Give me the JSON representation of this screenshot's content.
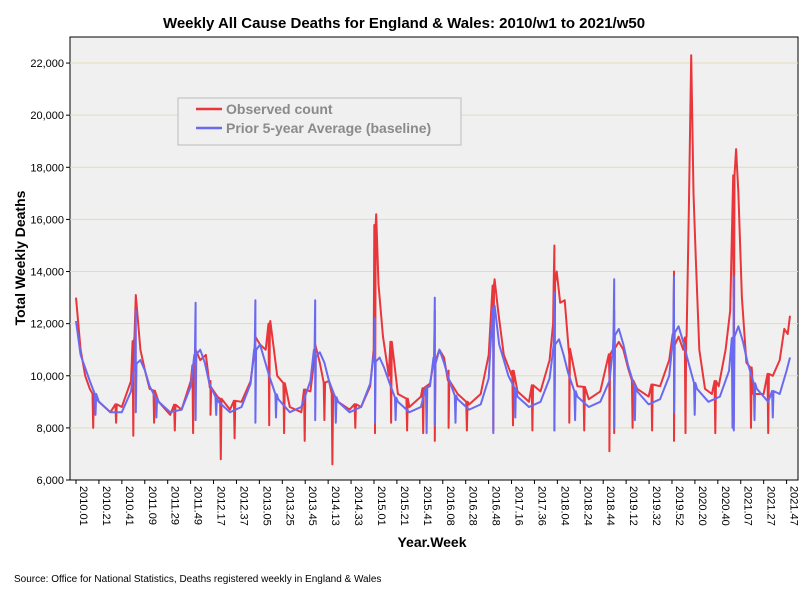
{
  "chart_data": {
    "type": "line",
    "title": "Weekly All Cause Deaths for England & Wales: 2010/w1 to 2021/w50",
    "xlabel": "Year.Week",
    "ylabel": "Total Weekly Deaths",
    "ylim": [
      6000,
      23000
    ],
    "yticks": [
      6000,
      8000,
      10000,
      12000,
      14000,
      16000,
      18000,
      20000,
      22000
    ],
    "ytick_labels": [
      "6,000",
      "8,000",
      "10,000",
      "12,000",
      "14,000",
      "16,000",
      "18,000",
      "20,000",
      "22,000"
    ],
    "xtick_labels": [
      "2010.01",
      "2010.21",
      "2010.41",
      "2011.09",
      "2011.29",
      "2011.49",
      "2012.17",
      "2012.37",
      "2013.05",
      "2013.25",
      "2013.45",
      "2014.13",
      "2014.33",
      "2015.01",
      "2015.21",
      "2015.41",
      "2016.08",
      "2016.28",
      "2016.48",
      "2017.16",
      "2017.36",
      "2018.04",
      "2018.24",
      "2018.44",
      "2019.12",
      "2019.32",
      "2019.52",
      "2020.20",
      "2020.40",
      "2021.07",
      "2021.27",
      "2021.47"
    ],
    "xtick_step_weeks": 20,
    "x_range": [
      "2010.01",
      "2021.50"
    ],
    "grid": "horizontal",
    "legend_position": "upper-left",
    "series": [
      {
        "name": "Observed count",
        "color": "#e8363b",
        "points": [
          [
            "2010.01",
            13000
          ],
          [
            "2010.05",
            11000
          ],
          [
            "2010.09",
            10000
          ],
          [
            "2010.13",
            9500
          ],
          [
            "2010.21",
            9000
          ],
          [
            "2010.31",
            8600
          ],
          [
            "2010.41",
            8800
          ],
          [
            "2010.49",
            9800
          ],
          [
            "2010.52",
            11500
          ],
          [
            "2011.01",
            13100
          ],
          [
            "2011.05",
            11000
          ],
          [
            "2011.09",
            10200
          ],
          [
            "2011.13",
            9500
          ],
          [
            "2011.21",
            9000
          ],
          [
            "2011.31",
            8500
          ],
          [
            "2011.41",
            8700
          ],
          [
            "2011.49",
            9800
          ],
          [
            "2011.52",
            10500
          ],
          [
            "2012.01",
            11000
          ],
          [
            "2012.05",
            10600
          ],
          [
            "2012.10",
            10800
          ],
          [
            "2012.14",
            9800
          ],
          [
            "2012.20",
            9200
          ],
          [
            "2012.31",
            8700
          ],
          [
            "2012.41",
            9000
          ],
          [
            "2012.49",
            9800
          ],
          [
            "2012.52",
            10800
          ],
          [
            "2013.01",
            11500
          ],
          [
            "2013.05",
            11200
          ],
          [
            "2013.10",
            11000
          ],
          [
            "2013.14",
            12100
          ],
          [
            "2013.20",
            10000
          ],
          [
            "2013.31",
            8800
          ],
          [
            "2013.41",
            8600
          ],
          [
            "2013.49",
            9400
          ],
          [
            "2013.52",
            10500
          ],
          [
            "2014.01",
            11200
          ],
          [
            "2014.05",
            10500
          ],
          [
            "2014.13",
            9800
          ],
          [
            "2014.21",
            9000
          ],
          [
            "2014.31",
            8700
          ],
          [
            "2014.41",
            8800
          ],
          [
            "2014.49",
            9600
          ],
          [
            "2014.52",
            11000
          ],
          [
            "2015.01",
            12000
          ],
          [
            "2015.02",
            16200
          ],
          [
            "2015.04",
            13500
          ],
          [
            "2015.08",
            11500
          ],
          [
            "2015.13",
            10000
          ],
          [
            "2015.21",
            9300
          ],
          [
            "2015.31",
            8800
          ],
          [
            "2015.41",
            9200
          ],
          [
            "2015.49",
            9700
          ],
          [
            "2015.52",
            10500
          ],
          [
            "2016.01",
            12500
          ],
          [
            "2016.05",
            11000
          ],
          [
            "2016.09",
            10700
          ],
          [
            "2016.13",
            10200
          ],
          [
            "2016.21",
            9300
          ],
          [
            "2016.31",
            8900
          ],
          [
            "2016.41",
            9300
          ],
          [
            "2016.48",
            10800
          ],
          [
            "2016.52",
            12500
          ],
          [
            "2017.01",
            13700
          ],
          [
            "2017.04",
            12500
          ],
          [
            "2017.09",
            10800
          ],
          [
            "2017.16",
            10000
          ],
          [
            "2017.21",
            9400
          ],
          [
            "2017.31",
            9000
          ],
          [
            "2017.41",
            9400
          ],
          [
            "2017.49",
            10600
          ],
          [
            "2017.52",
            12000
          ],
          [
            "2018.01",
            15000
          ],
          [
            "2018.03",
            14000
          ],
          [
            "2018.06",
            12800
          ],
          [
            "2018.10",
            12900
          ],
          [
            "2018.14",
            10800
          ],
          [
            "2018.21",
            9600
          ],
          [
            "2018.31",
            9100
          ],
          [
            "2018.41",
            9400
          ],
          [
            "2018.49",
            10000
          ],
          [
            "2018.52",
            11000
          ],
          [
            "2019.01",
            12500
          ],
          [
            "2019.05",
            11300
          ],
          [
            "2019.09",
            11000
          ],
          [
            "2019.13",
            10300
          ],
          [
            "2019.21",
            9500
          ],
          [
            "2019.31",
            9200
          ],
          [
            "2019.41",
            9600
          ],
          [
            "2019.49",
            10600
          ],
          [
            "2019.52",
            11600
          ],
          [
            "2020.01",
            14000
          ],
          [
            "2020.05",
            11500
          ],
          [
            "2020.09",
            11000
          ],
          [
            "2020.12",
            11500
          ],
          [
            "2020.14",
            16500
          ],
          [
            "2020.16",
            22300
          ],
          [
            "2020.18",
            17000
          ],
          [
            "2020.20",
            14500
          ],
          [
            "2020.23",
            11000
          ],
          [
            "2020.28",
            9500
          ],
          [
            "2020.34",
            9300
          ],
          [
            "2020.40",
            9600
          ],
          [
            "2020.46",
            11000
          ],
          [
            "2020.50",
            12500
          ],
          [
            "2020.53",
            13000
          ],
          [
            "2021.01",
            17500
          ],
          [
            "2021.03",
            18700
          ],
          [
            "2021.05",
            17000
          ],
          [
            "2021.08",
            13000
          ],
          [
            "2021.12",
            10500
          ],
          [
            "2021.18",
            9300
          ],
          [
            "2021.27",
            9300
          ],
          [
            "2021.35",
            10000
          ],
          [
            "2021.41",
            10600
          ],
          [
            "2021.45",
            11800
          ],
          [
            "2021.48",
            11600
          ],
          [
            "2021.50",
            12300
          ]
        ]
      },
      {
        "name": "Prior 5-year Average (baseline)",
        "color": "#6a6af0",
        "points": [
          [
            "2010.01",
            12100
          ],
          [
            "2010.05",
            10800
          ],
          [
            "2010.09",
            10300
          ],
          [
            "2010.13",
            9800
          ],
          [
            "2010.21",
            9000
          ],
          [
            "2010.31",
            8600
          ],
          [
            "2010.41",
            8600
          ],
          [
            "2010.49",
            9400
          ],
          [
            "2010.52",
            10400
          ],
          [
            "2011.01",
            12500
          ],
          [
            "2011.05",
            10600
          ],
          [
            "2011.09",
            10200
          ],
          [
            "2011.13",
            9600
          ],
          [
            "2011.21",
            9000
          ],
          [
            "2011.31",
            8600
          ],
          [
            "2011.41",
            8700
          ],
          [
            "2011.49",
            9600
          ],
          [
            "2011.52",
            10800
          ],
          [
            "2012.01",
            12800
          ],
          [
            "2012.05",
            11000
          ],
          [
            "2012.09",
            10500
          ],
          [
            "2012.13",
            9700
          ],
          [
            "2012.21",
            9000
          ],
          [
            "2012.31",
            8600
          ],
          [
            "2012.41",
            8800
          ],
          [
            "2012.49",
            9700
          ],
          [
            "2012.52",
            11000
          ],
          [
            "2013.01",
            12900
          ],
          [
            "2013.05",
            11200
          ],
          [
            "2013.09",
            10600
          ],
          [
            "2013.13",
            10000
          ],
          [
            "2013.21",
            9100
          ],
          [
            "2013.31",
            8600
          ],
          [
            "2013.41",
            8800
          ],
          [
            "2013.49",
            9800
          ],
          [
            "2013.52",
            11000
          ],
          [
            "2014.01",
            12900
          ],
          [
            "2014.05",
            10900
          ],
          [
            "2014.09",
            10500
          ],
          [
            "2014.13",
            9800
          ],
          [
            "2014.21",
            9000
          ],
          [
            "2014.31",
            8600
          ],
          [
            "2014.41",
            8800
          ],
          [
            "2014.49",
            9700
          ],
          [
            "2014.52",
            10800
          ],
          [
            "2015.01",
            12200
          ],
          [
            "2015.05",
            10700
          ],
          [
            "2015.09",
            10300
          ],
          [
            "2015.13",
            9800
          ],
          [
            "2015.21",
            9000
          ],
          [
            "2015.31",
            8600
          ],
          [
            "2015.41",
            8800
          ],
          [
            "2015.49",
            9600
          ],
          [
            "2015.52",
            10700
          ],
          [
            "2016.01",
            13000
          ],
          [
            "2016.05",
            11000
          ],
          [
            "2016.09",
            10500
          ],
          [
            "2016.13",
            9900
          ],
          [
            "2016.21",
            9100
          ],
          [
            "2016.31",
            8700
          ],
          [
            "2016.41",
            8900
          ],
          [
            "2016.48",
            9900
          ],
          [
            "2016.52",
            10900
          ],
          [
            "2017.01",
            12700
          ],
          [
            "2017.05",
            11200
          ],
          [
            "2017.09",
            10600
          ],
          [
            "2017.13",
            10000
          ],
          [
            "2017.21",
            9200
          ],
          [
            "2017.31",
            8800
          ],
          [
            "2017.41",
            9000
          ],
          [
            "2017.49",
            9900
          ],
          [
            "2017.52",
            11000
          ],
          [
            "2018.01",
            13200
          ],
          [
            "2018.05",
            11400
          ],
          [
            "2018.09",
            10800
          ],
          [
            "2018.13",
            10100
          ],
          [
            "2018.21",
            9200
          ],
          [
            "2018.31",
            8800
          ],
          [
            "2018.41",
            9000
          ],
          [
            "2018.49",
            9800
          ],
          [
            "2018.52",
            11000
          ],
          [
            "2019.01",
            13700
          ],
          [
            "2019.05",
            11800
          ],
          [
            "2019.09",
            11200
          ],
          [
            "2019.13",
            10400
          ],
          [
            "2019.21",
            9400
          ],
          [
            "2019.31",
            8900
          ],
          [
            "2019.41",
            9100
          ],
          [
            "2019.49",
            10000
          ],
          [
            "2019.52",
            11300
          ],
          [
            "2020.01",
            13800
          ],
          [
            "2020.05",
            11900
          ],
          [
            "2020.09",
            11300
          ],
          [
            "2020.13",
            10600
          ],
          [
            "2020.21",
            9500
          ],
          [
            "2020.31",
            9000
          ],
          [
            "2020.41",
            9200
          ],
          [
            "2020.49",
            10200
          ],
          [
            "2020.53",
            11500
          ],
          [
            "2021.01",
            13800
          ],
          [
            "2021.05",
            11900
          ],
          [
            "2021.09",
            11300
          ],
          [
            "2021.13",
            10500
          ],
          [
            "2021.21",
            9500
          ],
          [
            "2021.31",
            9000
          ],
          [
            "2021.41",
            9300
          ],
          [
            "2021.47",
            10200
          ],
          [
            "2021.50",
            10700
          ]
        ]
      }
    ],
    "spikes": [
      {
        "series": 0,
        "weeks": [
          "2010.16",
          "2010.36",
          "2010.51",
          "2011.17",
          "2011.35",
          "2011.51",
          "2012.14",
          "2012.23",
          "2012.35",
          "2013.13",
          "2013.26",
          "2013.44",
          "2014.09",
          "2014.16",
          "2014.36",
          "2015.01",
          "2015.15",
          "2015.29",
          "2015.43",
          "2016.01",
          "2016.13",
          "2016.29",
          "2016.52",
          "2017.17",
          "2017.34",
          "2018.01",
          "2018.14",
          "2018.27",
          "2018.49",
          "2019.01",
          "2019.17",
          "2019.34",
          "2020.01",
          "2020.11",
          "2020.37",
          "2021.01",
          "2021.16",
          "2021.31"
        ],
        "values": [
          8000,
          8200,
          7700,
          8200,
          7900,
          7800,
          8500,
          6800,
          7600,
          8100,
          7800,
          7500,
          8300,
          6600,
          8000,
          7800,
          8200,
          7900,
          7800,
          7500,
          8000,
          7900,
          7900,
          8100,
          7900,
          7900,
          8200,
          7900,
          7100,
          7800,
          8000,
          7900,
          7500,
          7800,
          7800,
          8200,
          8000,
          7800
        ]
      },
      {
        "series": 1,
        "weeks": [
          "2010.18",
          "2011.01",
          "2011.19",
          "2012.01",
          "2012.19",
          "2013.01",
          "2013.19",
          "2014.01",
          "2014.19",
          "2015.01",
          "2015.19",
          "2015.46",
          "2016.01",
          "2016.19",
          "2016.52",
          "2017.19",
          "2018.01",
          "2018.19",
          "2019.01",
          "2019.19",
          "2020.01",
          "2020.19",
          "2020.52",
          "2021.01",
          "2021.19",
          "2021.35"
        ],
        "values": [
          8500,
          8600,
          8400,
          8300,
          8500,
          8200,
          8400,
          8300,
          8200,
          8200,
          8300,
          7800,
          8100,
          8200,
          7800,
          8400,
          7900,
          8300,
          8000,
          8300,
          8600,
          8500,
          8000,
          7900,
          8300,
          8400
        ]
      }
    ]
  },
  "legend": {
    "items": [
      {
        "label": "Observed count",
        "color": "#e8363b"
      },
      {
        "label": "Prior 5-year Average (baseline)",
        "color": "#6a6af0"
      }
    ]
  },
  "footer": {
    "source": "Source: Office for National Statistics, Deaths registered weekly in England & Wales"
  }
}
